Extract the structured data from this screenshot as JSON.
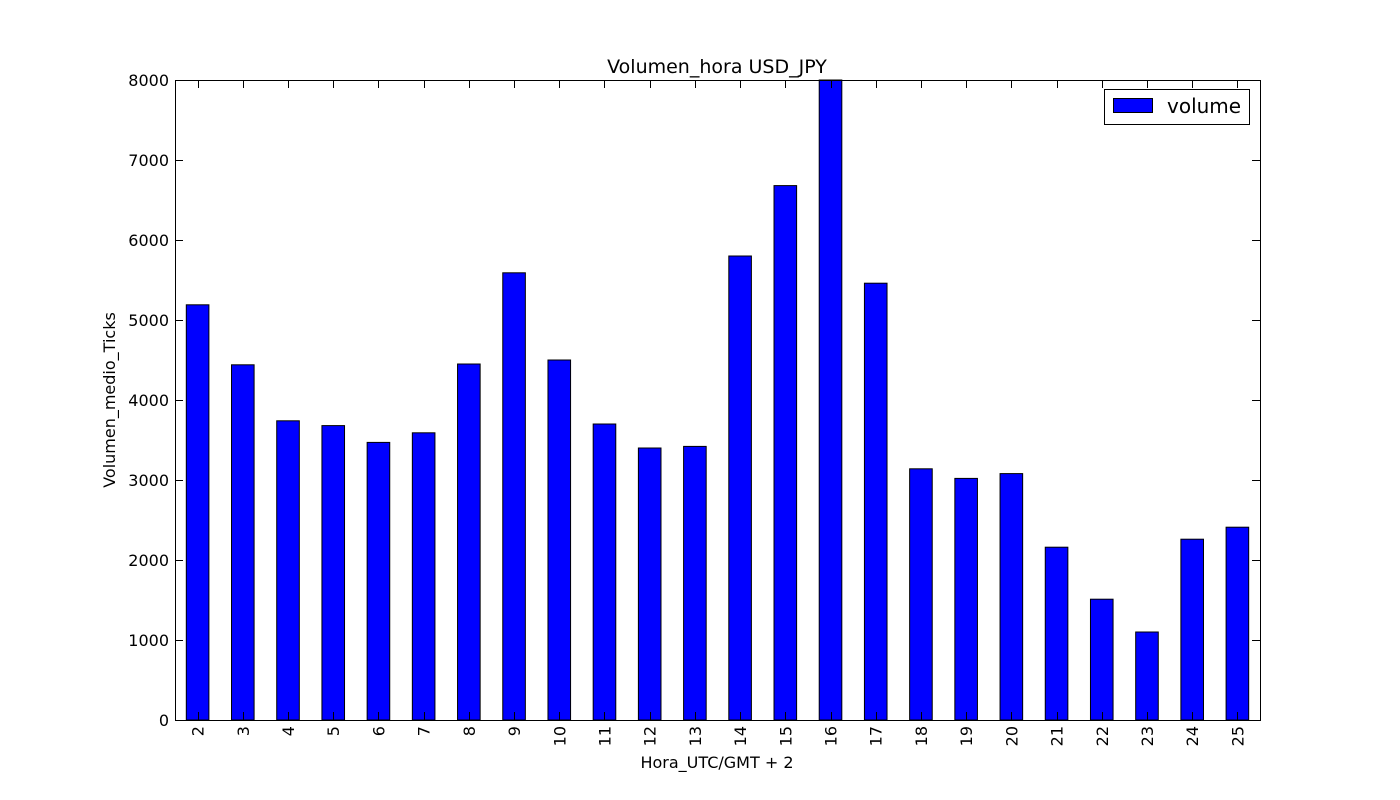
{
  "chart_data": {
    "type": "bar",
    "title": "Volumen_hora USD_JPY",
    "xlabel": "Hora_UTC/GMT + 2",
    "ylabel": "Volumen_medio_Ticks",
    "categories": [
      "2",
      "3",
      "4",
      "5",
      "6",
      "7",
      "8",
      "9",
      "10",
      "11",
      "12",
      "13",
      "14",
      "15",
      "16",
      "17",
      "18",
      "19",
      "20",
      "21",
      "22",
      "23",
      "24",
      "25"
    ],
    "series": [
      {
        "name": "volume",
        "color": "#0000ff",
        "values": [
          5190,
          4440,
          3740,
          3680,
          3470,
          3590,
          4450,
          5590,
          4500,
          3700,
          3400,
          3420,
          5800,
          6680,
          8000,
          5460,
          3140,
          3020,
          3080,
          2160,
          1510,
          1100,
          2260,
          2410
        ]
      }
    ],
    "ylim": [
      0,
      8000
    ],
    "yticks": [
      "0",
      "1000",
      "2000",
      "3000",
      "4000",
      "5000",
      "6000",
      "7000",
      "8000"
    ],
    "legend_position": "top-right",
    "grid": false
  }
}
